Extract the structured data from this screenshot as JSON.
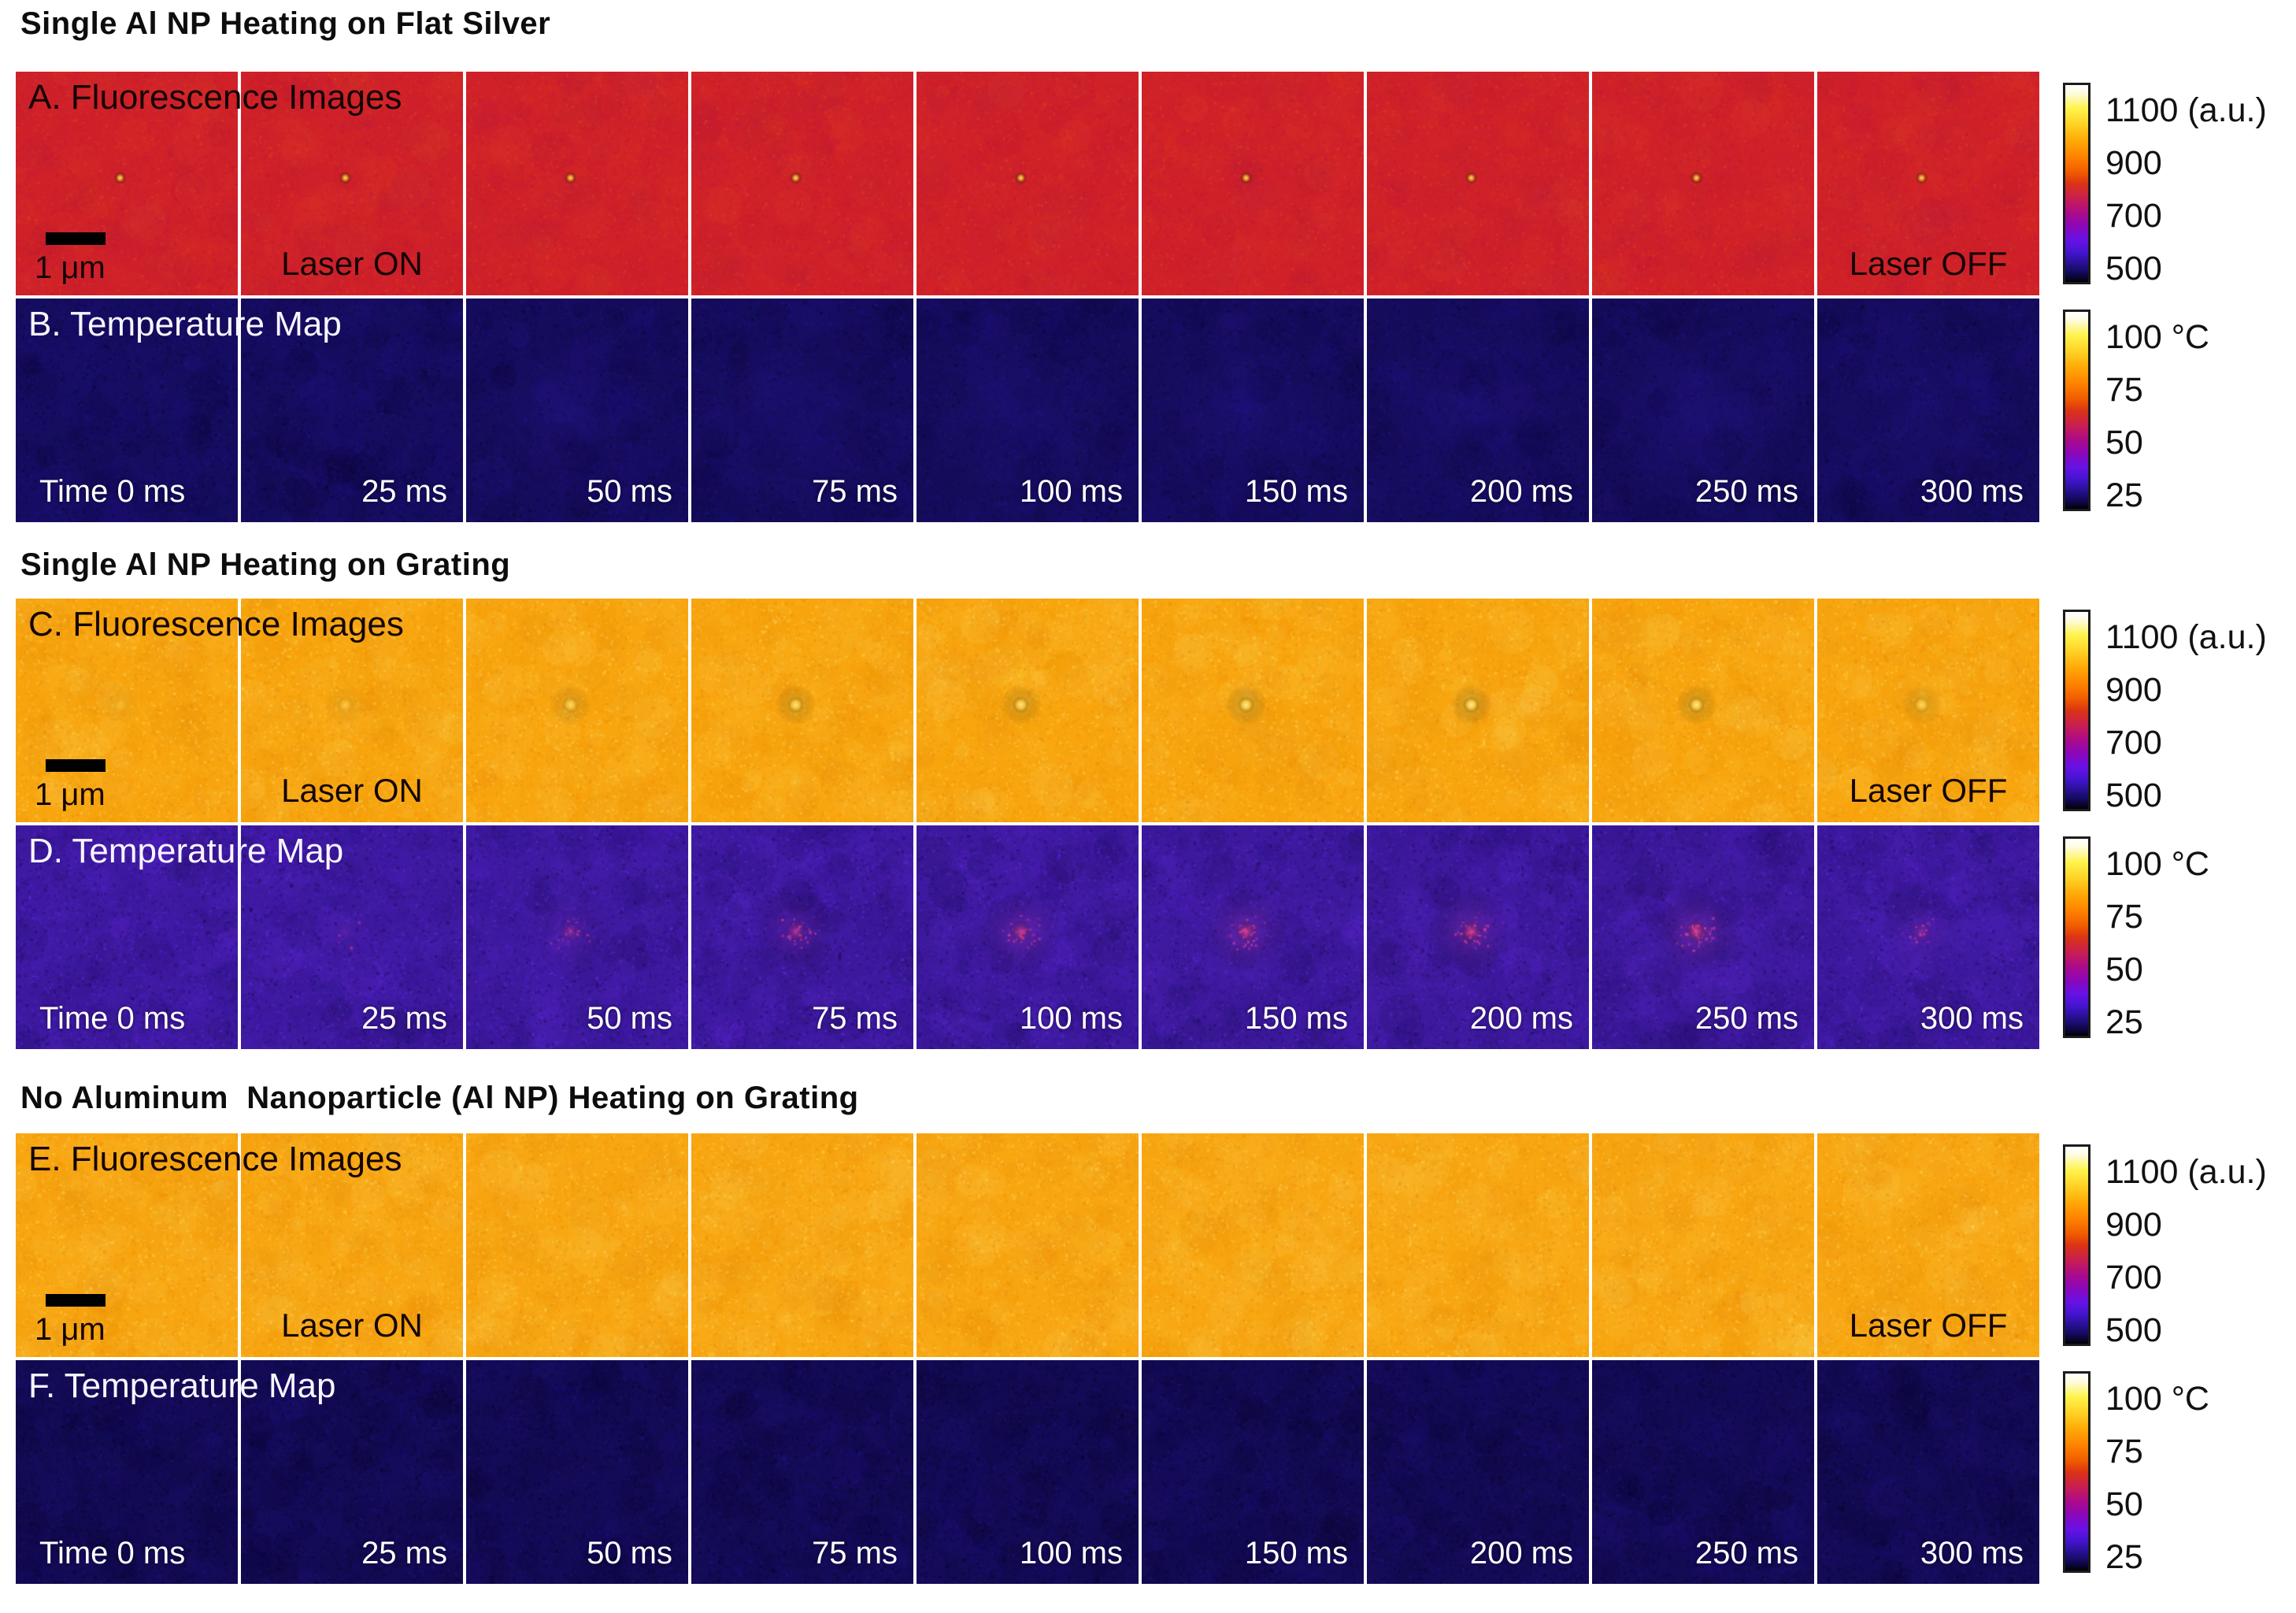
{
  "sections": [
    {
      "title": "Single Al NP Heating on Flat Silver",
      "rows": [
        {
          "label": "A. Fluorescence Images",
          "kind": "fluorescence",
          "scale_bar_label": "1 μm",
          "laser_on_label": "Laser ON",
          "laser_off_label": "Laser OFF",
          "colorbar_labels": [
            "1100 (a.u.)",
            "900",
            "700",
            "500"
          ],
          "colors": {
            "base": "#d02129",
            "palette": [
              "#bf1c40",
              "#e03a1e",
              "#b5173a",
              "#e24a2a",
              "#c62030"
            ],
            "dot_core": "#ffe089",
            "dot_mid": "#f89a1e"
          },
          "stripes": false,
          "panels": [
            {
              "dot": 1
            },
            {
              "dot": 1
            },
            {
              "dot": 1
            },
            {
              "dot": 1
            },
            {
              "dot": 1
            },
            {
              "dot": 1
            },
            {
              "dot": 1
            },
            {
              "dot": 1
            },
            {
              "dot": 1
            }
          ]
        },
        {
          "label": "B. Temperature Map",
          "kind": "temperature",
          "times": [
            "Time 0 ms",
            "25 ms",
            "50 ms",
            "75 ms",
            "100 ms",
            "150 ms",
            "200 ms",
            "250 ms",
            "300 ms"
          ],
          "colorbar_labels": [
            "100 °C",
            "75",
            "50",
            "25"
          ],
          "colors": {
            "base": "#150d5e",
            "palette": [
              "#0c0738",
              "#1e1378",
              "#2b1894",
              "#070420",
              "#241390"
            ],
            "warm": "#2f1aa0"
          },
          "stripes": false,
          "panels": [
            {
              "warm": 0
            },
            {
              "warm": 0.15
            },
            {
              "warm": 0.5
            },
            {
              "warm": 0.45
            },
            {
              "warm": 0.55
            },
            {
              "warm": 0.5
            },
            {
              "warm": 0.55
            },
            {
              "warm": 0.6
            },
            {
              "warm": 0.5
            }
          ]
        }
      ]
    },
    {
      "title": "Single Al NP Heating on Grating",
      "rows": [
        {
          "label": "C. Fluorescence Images",
          "kind": "fluorescence",
          "scale_bar_label": "1 μm",
          "laser_on_label": "Laser ON",
          "laser_off_label": "Laser OFF",
          "colorbar_labels": [
            "1100 (a.u.)",
            "900",
            "700",
            "500"
          ],
          "colors": {
            "base": "#f8a50e",
            "palette": [
              "#ffd24e",
              "#ee8f00",
              "#ffbf30",
              "#e4860b",
              "#ffe070"
            ],
            "dot_core": "#fff3b4",
            "dot_mid": "#ffd84e",
            "stripe_dark": "rgba(200,110,0,0.10)",
            "stripe_light": "rgba(255,238,160,0.10)"
          },
          "stripes": true,
          "panels": [
            {
              "dot": 0.15
            },
            {
              "dot": 0.3
            },
            {
              "dot": 0.6
            },
            {
              "dot": 0.75
            },
            {
              "dot": 0.8
            },
            {
              "dot": 0.85
            },
            {
              "dot": 0.9
            },
            {
              "dot": 0.85
            },
            {
              "dot": 0.55
            }
          ]
        },
        {
          "label": "D. Temperature Map",
          "kind": "temperature",
          "times": [
            "Time 0 ms",
            "25 ms",
            "50 ms",
            "75 ms",
            "100 ms",
            "150 ms",
            "200 ms",
            "250 ms",
            "300 ms"
          ],
          "colorbar_labels": [
            "100 °C",
            "75",
            "50",
            "25"
          ],
          "colors": {
            "base": "#3e1aa2",
            "palette": [
              "#5d26dc",
              "#250e6a",
              "#11063c",
              "#6e30ea",
              "#2d1180"
            ],
            "warm": "#6a2cd4",
            "hot_core": "#e8418a",
            "hot_halo": "#a435d2"
          },
          "stripes": false,
          "panels": [
            {
              "hot": 0,
              "warm": 0
            },
            {
              "hot": 0.12,
              "warm": 0.05
            },
            {
              "hot": 0.4,
              "warm": 0.15
            },
            {
              "hot": 0.6,
              "warm": 0.2
            },
            {
              "hot": 0.78,
              "warm": 0.3
            },
            {
              "hot": 0.85,
              "warm": 0.35
            },
            {
              "hot": 0.9,
              "warm": 0.4
            },
            {
              "hot": 0.95,
              "warm": 0.45
            },
            {
              "hot": 0.35,
              "warm": 0.2
            }
          ]
        }
      ]
    },
    {
      "title": "No Aluminum  Nanoparticle (Al NP) Heating on Grating",
      "rows": [
        {
          "label": "E. Fluorescence Images",
          "kind": "fluorescence",
          "scale_bar_label": "1 μm",
          "laser_on_label": "Laser ON",
          "laser_off_label": "Laser OFF",
          "colorbar_labels": [
            "1100 (a.u.)",
            "900",
            "700",
            "500"
          ],
          "colors": {
            "base": "#f8a611",
            "palette": [
              "#ffd24e",
              "#ee8f00",
              "#ffbf30",
              "#e4860b",
              "#ffe070"
            ],
            "stripe_dark": "rgba(200,110,0,0.10)",
            "stripe_light": "rgba(255,238,160,0.10)"
          },
          "stripes": true,
          "panels": [
            {
              "dot": 0
            },
            {
              "dot": 0
            },
            {
              "dot": 0
            },
            {
              "dot": 0
            },
            {
              "dot": 0
            },
            {
              "dot": 0
            },
            {
              "dot": 0
            },
            {
              "dot": 0
            },
            {
              "dot": 0
            }
          ]
        },
        {
          "label": "F. Temperature Map",
          "kind": "temperature",
          "times": [
            "Time 0 ms",
            "25 ms",
            "50 ms",
            "75 ms",
            "100 ms",
            "150 ms",
            "200 ms",
            "250 ms",
            "300 ms"
          ],
          "colorbar_labels": [
            "100 °C",
            "75",
            "50",
            "25"
          ],
          "colors": {
            "base": "#130b54",
            "palette": [
              "#0a0634",
              "#1c1170",
              "#271690",
              "#060318"
            ]
          },
          "stripes": false,
          "panels": [
            {
              "warm": 0
            },
            {
              "warm": 0
            },
            {
              "warm": 0
            },
            {
              "warm": 0
            },
            {
              "warm": 0
            },
            {
              "warm": 0
            },
            {
              "warm": 0
            },
            {
              "warm": 0
            },
            {
              "warm": 0
            }
          ]
        }
      ]
    }
  ],
  "colormap": {
    "name": "fire",
    "fluorescence_range": [
      "500",
      "1100 (a.u.)"
    ],
    "temperature_range": [
      "25",
      "100 °C"
    ]
  }
}
